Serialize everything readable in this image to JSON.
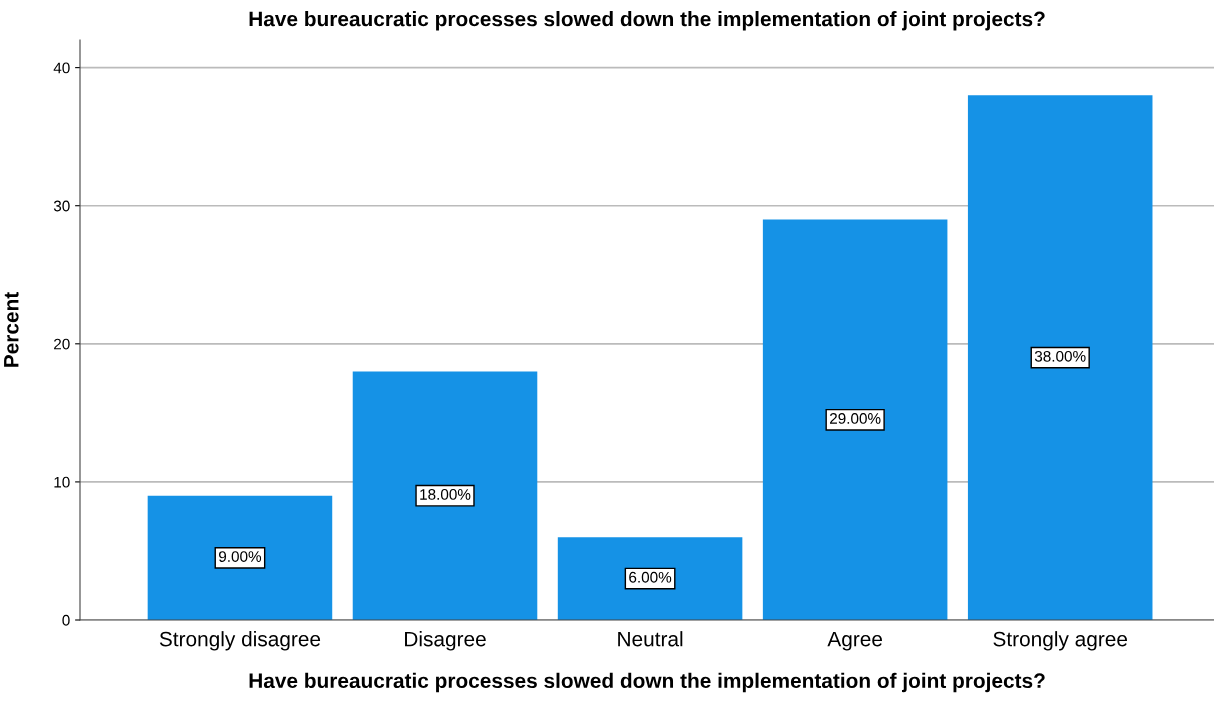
{
  "chart_data": {
    "type": "bar",
    "title": "Have bureaucratic processes slowed down the implementation of joint projects?",
    "xlabel": "Have bureaucratic processes slowed down the implementation of joint projects?",
    "ylabel": "Percent",
    "categories": [
      "Strongly disagree",
      "Disagree",
      "Neutral",
      "Agree",
      "Strongly agree"
    ],
    "values": [
      9,
      18,
      6,
      29,
      38
    ],
    "value_labels": [
      "9.00%",
      "18.00%",
      "6.00%",
      "29.00%",
      "38.00%"
    ],
    "color": "#1592e6",
    "ylim": [
      0,
      42
    ],
    "yticks": [
      0,
      10,
      20,
      30,
      40
    ],
    "grid": "y"
  }
}
